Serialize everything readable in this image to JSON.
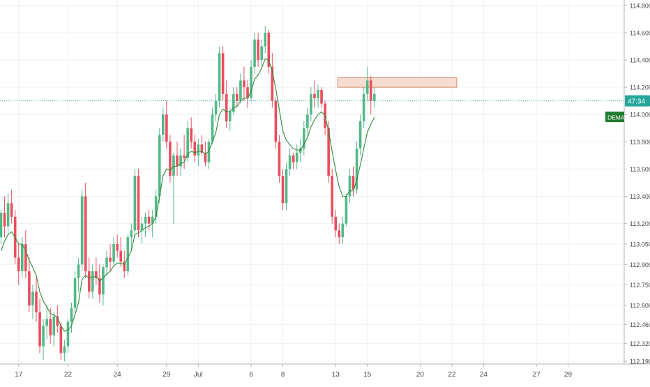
{
  "chart_data": {
    "type": "candlestick",
    "title": "",
    "xlabel": "",
    "ylabel": "",
    "ylim": [
      112.17,
      114.84
    ],
    "grid": true,
    "colors": {
      "up": "#53b987",
      "down": "#eb4d5c",
      "ema_line": "#2e8b3a",
      "current_price_line": "#26a69a",
      "zone_fill": "#f7dcd2",
      "zone_stroke": "#d08a6a",
      "grid": "#eef1f5",
      "axis_text": "#4a4a4a",
      "price_badge": "#26a69a",
      "indicator_badge": "#1f7a2d"
    },
    "y_tick_labels": [
      "114.800",
      "114.600",
      "114.400",
      "114.200",
      "114.000",
      "113.800",
      "113.600",
      "113.400",
      "113.200",
      "113.050",
      "112.900",
      "112.750",
      "112.600",
      "112.460",
      "112.320",
      "112.190"
    ],
    "x_ticks": [
      {
        "label": "17",
        "candle": 5
      },
      {
        "label": "22",
        "candle": 19
      },
      {
        "label": "24",
        "candle": 33
      },
      {
        "label": "29",
        "candle": 47
      },
      {
        "label": "Jul",
        "candle": 56
      },
      {
        "label": "6",
        "candle": 71
      },
      {
        "label": "8",
        "candle": 80
      },
      {
        "label": "13",
        "candle": 95
      },
      {
        "label": "15",
        "candle": 104
      },
      {
        "label": "20",
        "candle": 119
      },
      {
        "label": "22",
        "candle": 128
      },
      {
        "label": "24",
        "candle": 137
      },
      {
        "label": "27",
        "candle": 152
      },
      {
        "label": "29",
        "candle": 161
      }
    ],
    "current_price": 114.1,
    "current_price_label": "47:34",
    "indicator_label": "DEMA",
    "resistance_zone": {
      "start_candle": 96,
      "end_candle": 129,
      "low": 114.2,
      "high": 114.27
    },
    "candles": [
      [
        113.1,
        113.3,
        113.05,
        113.28
      ],
      [
        113.28,
        113.4,
        113.1,
        113.18
      ],
      [
        113.18,
        113.42,
        113.12,
        113.35
      ],
      [
        113.35,
        113.45,
        113.2,
        113.25
      ],
      [
        113.25,
        113.3,
        112.9,
        112.95
      ],
      [
        112.95,
        113.05,
        112.75,
        112.85
      ],
      [
        112.85,
        113.1,
        112.8,
        113.05
      ],
      [
        113.05,
        113.15,
        112.8,
        112.85
      ],
      [
        112.85,
        112.95,
        112.55,
        112.6
      ],
      [
        112.6,
        112.75,
        112.5,
        112.7
      ],
      [
        112.7,
        112.8,
        112.48,
        112.55
      ],
      [
        112.55,
        112.65,
        112.25,
        112.3
      ],
      [
        112.3,
        112.5,
        112.2,
        112.45
      ],
      [
        112.45,
        112.6,
        112.35,
        112.5
      ],
      [
        112.5,
        112.58,
        112.32,
        112.38
      ],
      [
        112.38,
        112.55,
        112.3,
        112.52
      ],
      [
        112.52,
        112.6,
        112.4,
        112.45
      ],
      [
        112.45,
        112.48,
        112.2,
        112.25
      ],
      [
        112.25,
        112.35,
        112.19,
        112.3
      ],
      [
        112.3,
        112.5,
        112.25,
        112.48
      ],
      [
        112.48,
        112.62,
        112.4,
        112.58
      ],
      [
        112.58,
        112.85,
        112.55,
        112.8
      ],
      [
        112.8,
        112.95,
        112.7,
        112.9
      ],
      [
        112.9,
        113.45,
        112.85,
        113.4
      ],
      [
        113.4,
        113.5,
        112.8,
        112.85
      ],
      [
        112.85,
        112.95,
        112.65,
        112.7
      ],
      [
        112.7,
        112.9,
        112.65,
        112.85
      ],
      [
        112.85,
        112.95,
        112.75,
        112.8
      ],
      [
        112.8,
        112.9,
        112.62,
        112.68
      ],
      [
        112.68,
        112.9,
        112.6,
        112.88
      ],
      [
        112.88,
        113.0,
        112.82,
        112.95
      ],
      [
        112.95,
        113.05,
        112.85,
        112.92
      ],
      [
        112.92,
        113.1,
        112.9,
        113.05
      ],
      [
        113.05,
        113.12,
        112.95,
        113.0
      ],
      [
        113.0,
        113.1,
        112.88,
        112.92
      ],
      [
        112.92,
        113.0,
        112.8,
        112.85
      ],
      [
        112.85,
        113.12,
        112.82,
        113.1
      ],
      [
        113.1,
        113.2,
        113.0,
        113.15
      ],
      [
        113.15,
        113.6,
        113.1,
        113.55
      ],
      [
        113.55,
        113.6,
        113.1,
        113.15
      ],
      [
        113.15,
        113.25,
        113.05,
        113.2
      ],
      [
        113.2,
        113.28,
        113.1,
        113.25
      ],
      [
        113.25,
        113.3,
        113.15,
        113.2
      ],
      [
        113.2,
        113.3,
        113.1,
        113.25
      ],
      [
        113.25,
        113.45,
        113.2,
        113.4
      ],
      [
        113.4,
        113.9,
        113.35,
        113.85
      ],
      [
        113.85,
        114.05,
        113.8,
        114.0
      ],
      [
        114.0,
        114.1,
        113.75,
        113.8
      ],
      [
        113.8,
        113.85,
        113.5,
        113.55
      ],
      [
        113.55,
        113.72,
        113.2,
        113.7
      ],
      [
        113.7,
        113.8,
        113.55,
        113.62
      ],
      [
        113.62,
        113.75,
        113.55,
        113.7
      ],
      [
        113.7,
        113.85,
        113.6,
        113.68
      ],
      [
        113.68,
        113.95,
        113.65,
        113.9
      ],
      [
        113.9,
        113.98,
        113.75,
        113.8
      ],
      [
        113.8,
        113.85,
        113.65,
        113.7
      ],
      [
        113.7,
        113.82,
        113.62,
        113.78
      ],
      [
        113.78,
        113.85,
        113.7,
        113.72
      ],
      [
        113.72,
        113.8,
        113.62,
        113.65
      ],
      [
        113.65,
        113.82,
        113.6,
        113.8
      ],
      [
        113.8,
        114.05,
        113.78,
        114.0
      ],
      [
        114.0,
        114.15,
        113.95,
        114.1
      ],
      [
        114.1,
        114.5,
        114.05,
        114.45
      ],
      [
        114.45,
        114.5,
        114.1,
        114.15
      ],
      [
        114.15,
        114.25,
        113.9,
        113.95
      ],
      [
        113.95,
        114.05,
        113.88,
        114.02
      ],
      [
        114.02,
        114.2,
        114.0,
        114.15
      ],
      [
        114.15,
        114.2,
        114.05,
        114.1
      ],
      [
        114.1,
        114.3,
        114.08,
        114.25
      ],
      [
        114.25,
        114.35,
        114.1,
        114.2
      ],
      [
        114.2,
        114.25,
        114.05,
        114.12
      ],
      [
        114.12,
        114.4,
        114.1,
        114.35
      ],
      [
        114.35,
        114.6,
        114.3,
        114.55
      ],
      [
        114.55,
        114.6,
        114.35,
        114.4
      ],
      [
        114.4,
        114.55,
        114.35,
        114.5
      ],
      [
        114.5,
        114.65,
        114.45,
        114.6
      ],
      [
        114.6,
        114.62,
        114.3,
        114.35
      ],
      [
        114.35,
        114.45,
        114.05,
        114.1
      ],
      [
        114.1,
        114.12,
        113.75,
        113.8
      ],
      [
        113.8,
        113.85,
        113.5,
        113.55
      ],
      [
        113.55,
        113.6,
        113.3,
        113.35
      ],
      [
        113.35,
        113.65,
        113.3,
        113.6
      ],
      [
        113.6,
        113.75,
        113.55,
        113.7
      ],
      [
        113.7,
        113.72,
        113.6,
        113.65
      ],
      [
        113.65,
        113.78,
        113.6,
        113.72
      ],
      [
        113.72,
        113.82,
        113.65,
        113.75
      ],
      [
        113.75,
        113.95,
        113.7,
        113.9
      ],
      [
        113.9,
        114.05,
        113.85,
        114.0
      ],
      [
        114.0,
        114.2,
        113.95,
        114.15
      ],
      [
        114.15,
        114.25,
        114.05,
        114.12
      ],
      [
        114.12,
        114.22,
        114.05,
        114.18
      ],
      [
        114.18,
        114.2,
        114.05,
        114.08
      ],
      [
        114.08,
        114.1,
        113.85,
        113.9
      ],
      [
        113.9,
        113.95,
        113.5,
        113.55
      ],
      [
        113.55,
        113.6,
        113.2,
        113.25
      ],
      [
        113.25,
        113.3,
        113.1,
        113.15
      ],
      [
        113.15,
        113.2,
        113.05,
        113.1
      ],
      [
        113.1,
        113.25,
        113.05,
        113.2
      ],
      [
        113.2,
        113.42,
        113.18,
        113.4
      ],
      [
        113.4,
        113.6,
        113.35,
        113.55
      ],
      [
        113.55,
        113.62,
        113.4,
        113.45
      ],
      [
        113.45,
        113.8,
        113.42,
        113.75
      ],
      [
        113.75,
        114.0,
        113.7,
        113.95
      ],
      [
        113.95,
        114.2,
        113.9,
        114.15
      ],
      [
        114.15,
        114.35,
        114.1,
        114.25
      ],
      [
        114.25,
        114.28,
        114.0,
        114.1
      ],
      [
        114.1,
        114.2,
        114.05,
        114.15
      ]
    ],
    "ema": [
      113.0,
      113.07,
      113.12,
      113.14,
      113.1,
      113.05,
      113.05,
      113.0,
      112.93,
      112.88,
      112.82,
      112.7,
      112.63,
      112.59,
      112.54,
      112.53,
      112.51,
      112.45,
      112.41,
      112.42,
      112.45,
      112.53,
      112.62,
      112.79,
      112.82,
      112.8,
      112.81,
      112.81,
      112.78,
      112.8,
      112.83,
      112.85,
      112.89,
      112.91,
      112.91,
      112.9,
      112.95,
      113.0,
      113.12,
      113.13,
      113.15,
      113.17,
      113.18,
      113.2,
      113.25,
      113.4,
      113.55,
      113.6,
      113.59,
      113.62,
      113.62,
      113.64,
      113.65,
      113.71,
      113.73,
      113.72,
      113.73,
      113.73,
      113.71,
      113.73,
      113.8,
      113.87,
      114.0,
      114.04,
      114.02,
      114.02,
      114.05,
      114.06,
      114.1,
      114.12,
      114.12,
      114.17,
      114.26,
      114.29,
      114.34,
      114.41,
      114.4,
      114.32,
      114.19,
      114.04,
      113.88,
      113.81,
      113.78,
      113.75,
      113.74,
      113.74,
      113.78,
      113.83,
      113.91,
      113.96,
      114.0,
      114.02,
      113.99,
      113.88,
      113.73,
      113.59,
      113.47,
      113.4,
      113.4,
      113.44,
      113.44,
      113.52,
      113.63,
      113.75,
      113.87,
      113.93,
      113.98
    ]
  }
}
